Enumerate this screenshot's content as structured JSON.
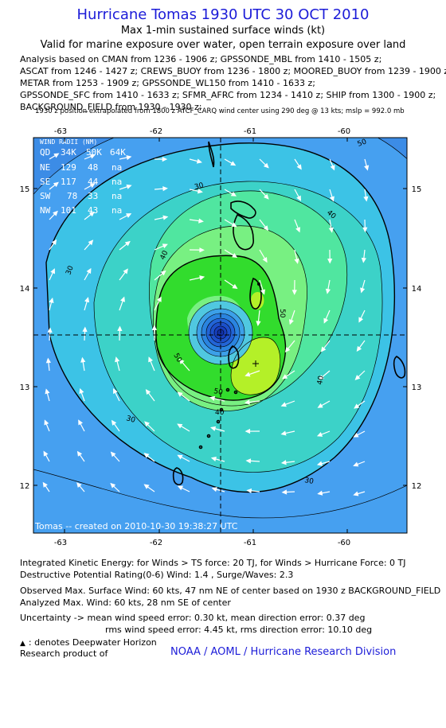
{
  "header": {
    "title": "Hurricane Tomas 1930 UTC 30 OCT 2010",
    "subtitle1": "Max 1-min sustained surface winds (kt)",
    "subtitle2": "Valid for marine exposure over water, open terrain exposure over land"
  },
  "sources": [
    "Analysis based on CMAN from 1236 - 1906 z; GPSSONDE_MBL from 1410 - 1505 z;",
    "ASCAT from 1246 - 1427 z; CREWS_BUOY from 1236 - 1800 z; MOORED_BUOY from 1239 - 1900 z;",
    "METAR from 1253 - 1909 z; GPSSONDE_WL150 from 1410 - 1633 z;",
    "GPSSONDE_SFC from 1410 - 1633 z; SFMR_AFRC from 1234 - 1410 z; SHIP from 1300 - 1900 z;",
    "BACKGROUND_FIELD from 1930 - 1930 z;"
  ],
  "extrapolation_note": "1930 z position extrapolated from 1800 z ATCF_CARQ wind center using 290 deg @ 13 kts; mslp = 992.0 mb",
  "map": {
    "x_ticks": [
      "-63",
      "-62",
      "-61",
      "-60"
    ],
    "y_ticks": [
      "15",
      "14",
      "13",
      "12"
    ],
    "contour_labels": [
      "50",
      "40",
      "30",
      "40",
      "50",
      "40",
      "50",
      "30",
      "30",
      "40",
      "50",
      "30"
    ],
    "created_label": "Tomas -- created on 2010-10-30 19:38:27 UTC",
    "wind_radii": {
      "title": "WIND RADII (NM)",
      "header": [
        "QD",
        "34K",
        "50K",
        "64K"
      ],
      "rows": [
        [
          "NE",
          "129",
          "48",
          "na"
        ],
        [
          "SE",
          "117",
          "44",
          "na"
        ],
        [
          "SW",
          "78",
          "33",
          "na"
        ],
        [
          "NW",
          "101",
          "43",
          "na"
        ]
      ]
    },
    "colors": {
      "ocean_dark": "#3c8ce6",
      "band_25": "#46a0f0",
      "band_30": "#3cc3e6",
      "band_35": "#3cd2c8",
      "band_40": "#50e6a0",
      "band_45": "#78f082",
      "band_50": "#32dc2d",
      "band_55": "#b4f028",
      "center": "#1846c8"
    }
  },
  "info": {
    "ike": "Integrated Kinetic Energy:  for Winds > TS force: 20 TJ,  for Winds > Hurricane Force: 0 TJ",
    "dpr": "Destructive Potential Rating(0-6)   Wind: 1.4 , Surge/Waves: 2.3",
    "observed_max": "Observed Max. Surface Wind: 60 kts, 47 nm NE of center based on 1930 z BACKGROUND_FIELD",
    "analyzed_max": "Analyzed Max. Wind: 60 kts, 28 nm SE of center",
    "uncertainty1": "Uncertainty -> mean wind speed error: 0.30 kt,   mean direction error: 0.37 deg",
    "uncertainty2": "rms wind speed error: 4.45 kt,    rms direction error: 10.10 deg",
    "legend": ": denotes Deepwater Horizon",
    "research": "Research product of",
    "noaa": "NOAA / AOML / Hurricane Research Division"
  }
}
